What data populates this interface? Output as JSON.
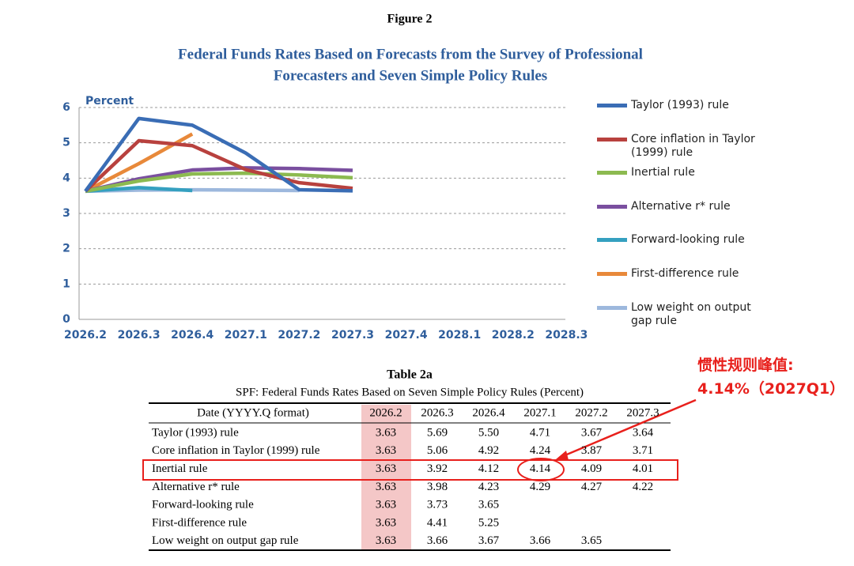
{
  "figure_label": "Figure 2",
  "chart_data": {
    "type": "line",
    "title": [
      "Federal Funds Rates Based on Forecasts from the Survey of Professional",
      "Forecasters and Seven Simple Policy Rules"
    ],
    "y_label": "Percent",
    "categories": [
      "2026.2",
      "2026.3",
      "2026.4",
      "2027.1",
      "2027.2",
      "2027.3",
      "2027.4",
      "2028.1",
      "2028.2",
      "2028.3"
    ],
    "ylim": [
      0,
      6
    ],
    "yticks": [
      0,
      1,
      2,
      3,
      4,
      5,
      6
    ],
    "grid": true,
    "legend": "right",
    "series": [
      {
        "name": "Taylor (1993) rule",
        "color": "#3a6db5",
        "values": [
          3.63,
          5.69,
          5.5,
          4.71,
          3.67,
          3.64,
          null,
          null,
          null,
          null
        ]
      },
      {
        "name": "Core inflation in Taylor (1999) rule",
        "color": "#b8413e",
        "values": [
          3.63,
          5.06,
          4.92,
          4.24,
          3.87,
          3.71,
          null,
          null,
          null,
          null
        ]
      },
      {
        "name": "Inertial rule",
        "color": "#8cba50",
        "values": [
          3.63,
          3.92,
          4.12,
          4.14,
          4.09,
          4.01,
          null,
          null,
          null,
          null
        ]
      },
      {
        "name": "Alternative r* rule",
        "color": "#7a4f9f",
        "values": [
          3.63,
          3.98,
          4.23,
          4.29,
          4.27,
          4.22,
          null,
          null,
          null,
          null
        ]
      },
      {
        "name": "Forward-looking rule",
        "color": "#35a0c0",
        "values": [
          3.63,
          3.73,
          3.65,
          null,
          null,
          null,
          null,
          null,
          null,
          null
        ]
      },
      {
        "name": "First-difference rule",
        "color": "#e8893a",
        "values": [
          3.63,
          4.41,
          5.25,
          null,
          null,
          null,
          null,
          null,
          null,
          null
        ]
      },
      {
        "name": "Low weight on output gap rule",
        "color": "#9db8dd",
        "values": [
          3.63,
          3.66,
          3.67,
          3.66,
          3.65,
          null,
          null,
          null,
          null,
          null
        ]
      }
    ]
  },
  "table": {
    "title": "Table 2a",
    "subtitle": "SPF: Federal Funds Rates Based on Seven Simple Policy Rules (Percent)",
    "header": [
      "Date (YYYY.Q format)",
      "2026.2",
      "2026.3",
      "2026.4",
      "2027.1",
      "2027.2",
      "2027.3"
    ],
    "rows": [
      [
        "Taylor (1993) rule",
        "3.63",
        "5.69",
        "5.50",
        "4.71",
        "3.67",
        "3.64"
      ],
      [
        "Core inflation in Taylor (1999) rule",
        "3.63",
        "5.06",
        "4.92",
        "4.24",
        "3.87",
        "3.71"
      ],
      [
        "Inertial rule",
        "3.63",
        "3.92",
        "4.12",
        "4.14",
        "4.09",
        "4.01"
      ],
      [
        "Alternative r* rule",
        "3.63",
        "3.98",
        "4.23",
        "4.29",
        "4.27",
        "4.22"
      ],
      [
        "Forward-looking rule",
        "3.63",
        "3.73",
        "3.65"
      ],
      [
        "First-difference rule",
        "3.63",
        "4.41",
        "5.25"
      ],
      [
        "Low weight on output gap rule",
        "3.63",
        "3.66",
        "3.67",
        "3.66",
        "3.65"
      ]
    ]
  },
  "annotation": [
    "惯性规则峰值:",
    "4.14%（2027Q1）"
  ]
}
